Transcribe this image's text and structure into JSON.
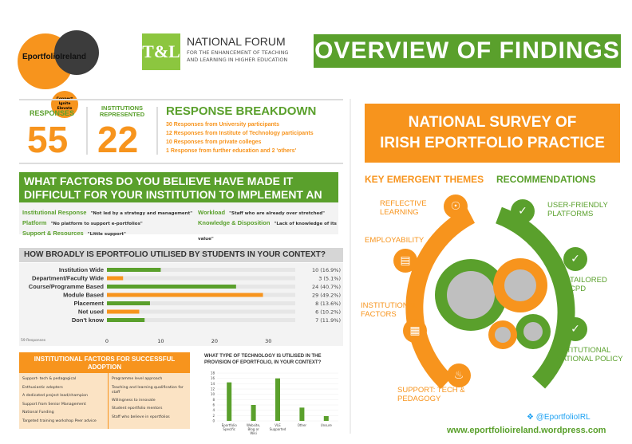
{
  "header": {
    "logo_name": "EportfolioIreland",
    "logo_tagline": "Connect Ignite Elevate",
    "nf_mark": "T&L",
    "nf_title": "NATIONAL FORUM",
    "nf_subtitle": "FOR THE ENHANCEMENT OF TEACHING AND LEARNING IN HIGHER EDUCATION",
    "banner": "OVERVIEW OF FINDINGS"
  },
  "stats": {
    "responses_label": "RESPONSES",
    "responses_value": "55",
    "institutions_label": "INSTITUTIONS REPRESENTED",
    "institutions_value": "22"
  },
  "breakdown": {
    "title": "RESPONSE BREAKDOWN",
    "lines": [
      "30 Responses from University participants",
      "12 Responses from Institute of Technology participants",
      "10 Responses from private colleges",
      "1 Response from further education and 2 'others'"
    ]
  },
  "factors": {
    "title": "WHAT FACTORS DO YOU BELIEVE HAVE MADE IT DIFFICULT FOR YOUR INSTITUTION TO IMPLEMENT AN EPORTFOLIO?",
    "items": [
      {
        "key": "Institutional Response",
        "quote": "\"Not led by a strategy and management\""
      },
      {
        "key": "Workload",
        "quote": "\"Staff who are already over stretched\""
      },
      {
        "key": "Platform",
        "quote": "\"No platform to support e-portfolios\""
      },
      {
        "key": "Knowledge & Disposition",
        "quote": "\"Lack of knowledge of its value\""
      },
      {
        "key": "Support & Resources",
        "quote": "\"Little support\""
      }
    ]
  },
  "chart_data": [
    {
      "type": "bar",
      "title": "HOW BROADLY IS EPORTFOLIO UTILISED BY STUDENTS IN YOUR CONTEXT?",
      "categories": [
        "Institution Wide",
        "Department/Faculty Wide",
        "Course/Programme Based",
        "Module Based",
        "Placement",
        "Not used",
        "Don't know"
      ],
      "values": [
        10,
        3,
        24,
        29,
        8,
        6,
        7
      ],
      "labels": [
        "10 (16.9%)",
        "3 (5.1%)",
        "24 (40.7%)",
        "29 (49.2%)",
        "8 (13.6%)",
        "6 (10.2%)",
        "7 (11.9%)"
      ],
      "highlight": [
        false,
        true,
        false,
        true,
        false,
        true,
        false
      ],
      "xlim": [
        0,
        35
      ],
      "xticks": [
        "0",
        "10",
        "20",
        "30"
      ],
      "note": "59 Responses",
      "colors": {
        "green": "#5aa02c",
        "orange": "#f7941d",
        "track": "#e6e6e6"
      }
    },
    {
      "type": "bar",
      "title": "WHAT TYPE OF TECHNOLOGY IS UTILISED IN THE PROVISION OF EPORTFOLIO, IN YOUR CONTEXT?",
      "categories": [
        "Eportfolio Specific",
        "Website, Blog or Wiki",
        "VLE Supported",
        "Other",
        "Unsure"
      ],
      "values": [
        14.5,
        6,
        16,
        5,
        1.8
      ],
      "ylim": [
        0,
        18
      ],
      "yticks": [
        "0",
        "2",
        "4",
        "6",
        "8",
        "10",
        "12",
        "14",
        "16",
        "18"
      ],
      "colors": {
        "bar": "#5aa02c"
      }
    }
  ],
  "institutional": {
    "title": "INSTITUTIONAL FACTORS FOR SUCCESSFUL ADOPTION",
    "left": [
      "Support- tech & pedagogical",
      "Enthusiastic adopters",
      "A dedicated project lead/champion",
      "Support from Senior Management",
      "National Funding",
      "Targeted training workshop Peer advice"
    ],
    "right": [
      "Programme level approach",
      "Teaching and learning qualification for staff",
      "Willingness to innovate",
      "Student eportfolio mentors",
      "Staff who believe in eportfolios"
    ]
  },
  "survey": {
    "title_line1": "NATIONAL SURVEY OF",
    "title_line2": "IRISH EPORTFOLIO PRACTICE",
    "themes_head": "KEY EMERGENT THEMES",
    "recs_head": "RECOMMENDATIONS",
    "themes": [
      "REFLECTIVE LEARNING",
      "EMPLOYABILITY",
      "INSTITUTIONAL FACTORS",
      "SUPPORT: TECH & PEDAGOGY"
    ],
    "recs": [
      "USER-FRIENDLY PLATFORMS",
      "TAILORED CPD",
      "INSTITUTIONAL /NATIONAL POLICY"
    ]
  },
  "footer": {
    "twitter": "@EportfolioIRL",
    "url": "www.eportfolioireland.wordpress.com"
  }
}
